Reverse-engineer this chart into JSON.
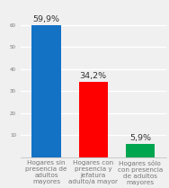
{
  "categories": [
    "Hogares sin\npresencia de\nadultos\nmayores",
    "Hogares con\npresencia y\njefatura\nadulto/a mayor",
    "Hogares sólo\ncon presencia\nde adultos\nmayores"
  ],
  "values": [
    59.9,
    34.2,
    5.9
  ],
  "labels": [
    "59,9%",
    "34,2%",
    "5,9%"
  ],
  "bar_colors": [
    "#1472c4",
    "#ff0000",
    "#00a550"
  ],
  "ylim": [
    0,
    70
  ],
  "ytick_values": [
    10,
    20,
    30,
    40,
    50,
    60
  ],
  "background_color": "#f0f0f0",
  "label_fontsize": 5.2,
  "value_fontsize": 6.8,
  "grid_color": "#ffffff",
  "tick_label_color": "#777777",
  "ytick_fontsize": 4.0
}
